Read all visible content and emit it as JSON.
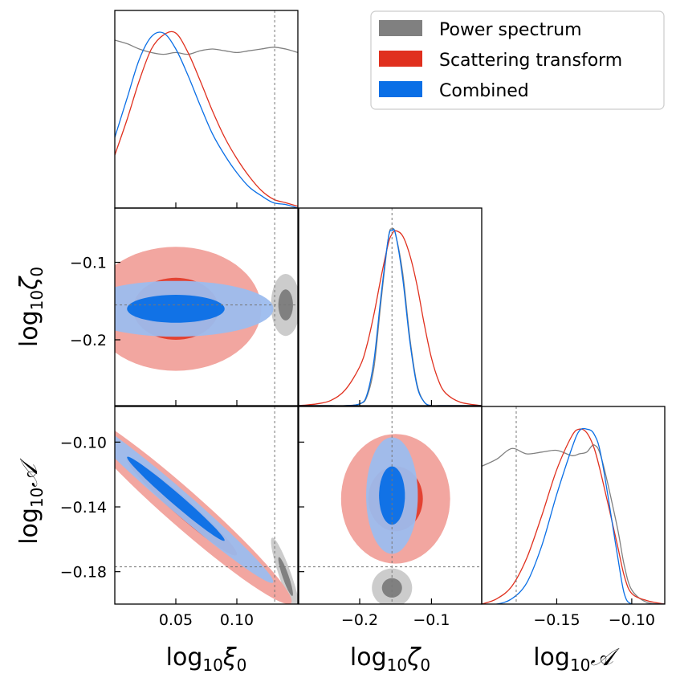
{
  "colors": {
    "power": "#808080",
    "scattering": "#e0301e",
    "combined": "#0a6fe6",
    "scattering_light": "#f2a6a0",
    "combined_light": "#9cbcee",
    "power_light": "#cccccc"
  },
  "legend": {
    "placement": "top-right",
    "items": [
      {
        "label": "Power spectrum",
        "color": "#808080"
      },
      {
        "label": "Scattering transform",
        "color": "#e0301e"
      },
      {
        "label": "Combined",
        "color": "#0a6fe6"
      }
    ]
  },
  "chart_data": {
    "type": "corner",
    "params": [
      {
        "id": "xi0",
        "label_base": "log",
        "label_sub": "10",
        "label_sym": "ξ",
        "label_sym_sub": "0",
        "range": [
          0.0,
          0.15
        ],
        "ticks": [
          0.05,
          0.1
        ],
        "tick_labels": [
          "0.05",
          "0.10"
        ],
        "truth": 0.131
      },
      {
        "id": "zeta0",
        "label_base": "log",
        "label_sub": "10",
        "label_sym": "ζ",
        "label_sym_sub": "0",
        "range": [
          -0.285,
          -0.03
        ],
        "ticks": [
          -0.2,
          -0.1
        ],
        "tick_labels": [
          "−0.2",
          "−0.1"
        ],
        "y_ticks": [
          -0.1,
          -0.2
        ],
        "y_tick_labels": [
          "−0.1",
          "−0.2"
        ],
        "truth": -0.155
      },
      {
        "id": "A",
        "label_base": "log",
        "label_sub": "10",
        "label_sym": "𝒜",
        "label_sym_sub": "",
        "range": [
          -0.2,
          -0.078
        ],
        "ticks": [
          -0.15,
          -0.1
        ],
        "tick_labels": [
          "−0.15",
          "−0.10"
        ],
        "y_ticks": [
          -0.1,
          -0.14,
          -0.18
        ],
        "y_tick_labels": [
          "−0.10",
          "−0.14",
          "−0.18"
        ],
        "truth": -0.177
      }
    ],
    "marginals": {
      "xi0": {
        "x": [
          0.0,
          0.01,
          0.02,
          0.03,
          0.04,
          0.05,
          0.06,
          0.07,
          0.08,
          0.09,
          0.1,
          0.11,
          0.12,
          0.13,
          0.14,
          0.15
        ],
        "power": [
          0.95,
          0.93,
          0.9,
          0.88,
          0.87,
          0.88,
          0.87,
          0.89,
          0.9,
          0.89,
          0.88,
          0.89,
          0.9,
          0.91,
          0.9,
          0.88
        ],
        "scattering": [
          0.3,
          0.5,
          0.72,
          0.9,
          0.98,
          0.99,
          0.88,
          0.72,
          0.55,
          0.4,
          0.28,
          0.18,
          0.1,
          0.05,
          0.03,
          0.01
        ],
        "combined": [
          0.4,
          0.62,
          0.84,
          0.97,
          0.99,
          0.9,
          0.75,
          0.58,
          0.42,
          0.3,
          0.2,
          0.12,
          0.07,
          0.03,
          0.02,
          0.0
        ]
      },
      "zeta0": {
        "x": [
          -0.285,
          -0.26,
          -0.24,
          -0.22,
          -0.2,
          -0.19,
          -0.18,
          -0.17,
          -0.16,
          -0.155,
          -0.15,
          -0.14,
          -0.13,
          -0.12,
          -0.11,
          -0.1,
          -0.09,
          -0.08,
          -0.06,
          -0.03
        ],
        "power": [
          0.0,
          0.0,
          0.0,
          0.0,
          0.01,
          0.05,
          0.22,
          0.6,
          0.95,
          1.0,
          0.97,
          0.75,
          0.38,
          0.12,
          0.02,
          0.0,
          0.0,
          0.0,
          0.0,
          0.0
        ],
        "scattering": [
          0.0,
          0.01,
          0.03,
          0.09,
          0.22,
          0.34,
          0.52,
          0.73,
          0.92,
          0.97,
          0.99,
          0.96,
          0.85,
          0.68,
          0.46,
          0.27,
          0.14,
          0.07,
          0.02,
          0.0
        ],
        "combined": [
          0.0,
          0.0,
          0.0,
          0.0,
          0.01,
          0.06,
          0.26,
          0.63,
          0.95,
          0.99,
          0.97,
          0.72,
          0.36,
          0.11,
          0.02,
          0.0,
          0.0,
          0.0,
          0.0,
          0.0
        ]
      },
      "A": {
        "x": [
          -0.2,
          -0.19,
          -0.18,
          -0.17,
          -0.16,
          -0.15,
          -0.14,
          -0.135,
          -0.13,
          -0.125,
          -0.12,
          -0.11,
          -0.105,
          -0.1,
          -0.09,
          -0.078
        ],
        "power": [
          0.78,
          0.82,
          0.88,
          0.85,
          0.86,
          0.87,
          0.84,
          0.85,
          0.86,
          0.9,
          0.82,
          0.45,
          0.22,
          0.08,
          0.01,
          0.0
        ],
        "scattering": [
          0.0,
          0.03,
          0.1,
          0.26,
          0.5,
          0.76,
          0.95,
          0.99,
          0.97,
          0.88,
          0.72,
          0.35,
          0.16,
          0.06,
          0.02,
          0.0
        ],
        "combined": [
          0.0,
          0.0,
          0.03,
          0.12,
          0.33,
          0.62,
          0.88,
          0.98,
          0.99,
          0.96,
          0.82,
          0.3,
          0.06,
          0.0,
          0.0,
          0.0
        ]
      }
    },
    "joint": {
      "zeta0_vs_xi0": {
        "scattering": {
          "center": [
            0.05,
            -0.16
          ],
          "sd": [
            0.035,
            0.04
          ],
          "rho": 0.0
        },
        "combined": {
          "center": [
            0.05,
            -0.16
          ],
          "sd": [
            0.04,
            0.018
          ],
          "rho": 0.0
        },
        "power": {
          "center": [
            0.14,
            -0.155
          ],
          "sd": [
            0.006,
            0.02
          ],
          "rho": 0.0
        }
      },
      "A_vs_xi0": {
        "scattering": {
          "center": [
            0.055,
            -0.14
          ],
          "sd": [
            0.045,
            0.03
          ],
          "rho": -0.97
        },
        "combined": {
          "center": [
            0.05,
            -0.135
          ],
          "sd": [
            0.04,
            0.026
          ],
          "rho": -0.985
        },
        "power": {
          "center": [
            0.14,
            -0.183
          ],
          "sd": [
            0.006,
            0.012
          ],
          "rho": -0.9
        }
      },
      "A_vs_zeta0": {
        "scattering": {
          "center": [
            -0.15,
            -0.135
          ],
          "sd": [
            0.038,
            0.02
          ],
          "rho": 0.0
        },
        "combined": {
          "center": [
            -0.155,
            -0.133
          ],
          "sd": [
            0.018,
            0.018
          ],
          "rho": 0.0
        },
        "power": {
          "center": [
            -0.155,
            -0.19
          ],
          "sd": [
            0.014,
            0.006
          ],
          "rho": 0.0
        }
      }
    }
  }
}
